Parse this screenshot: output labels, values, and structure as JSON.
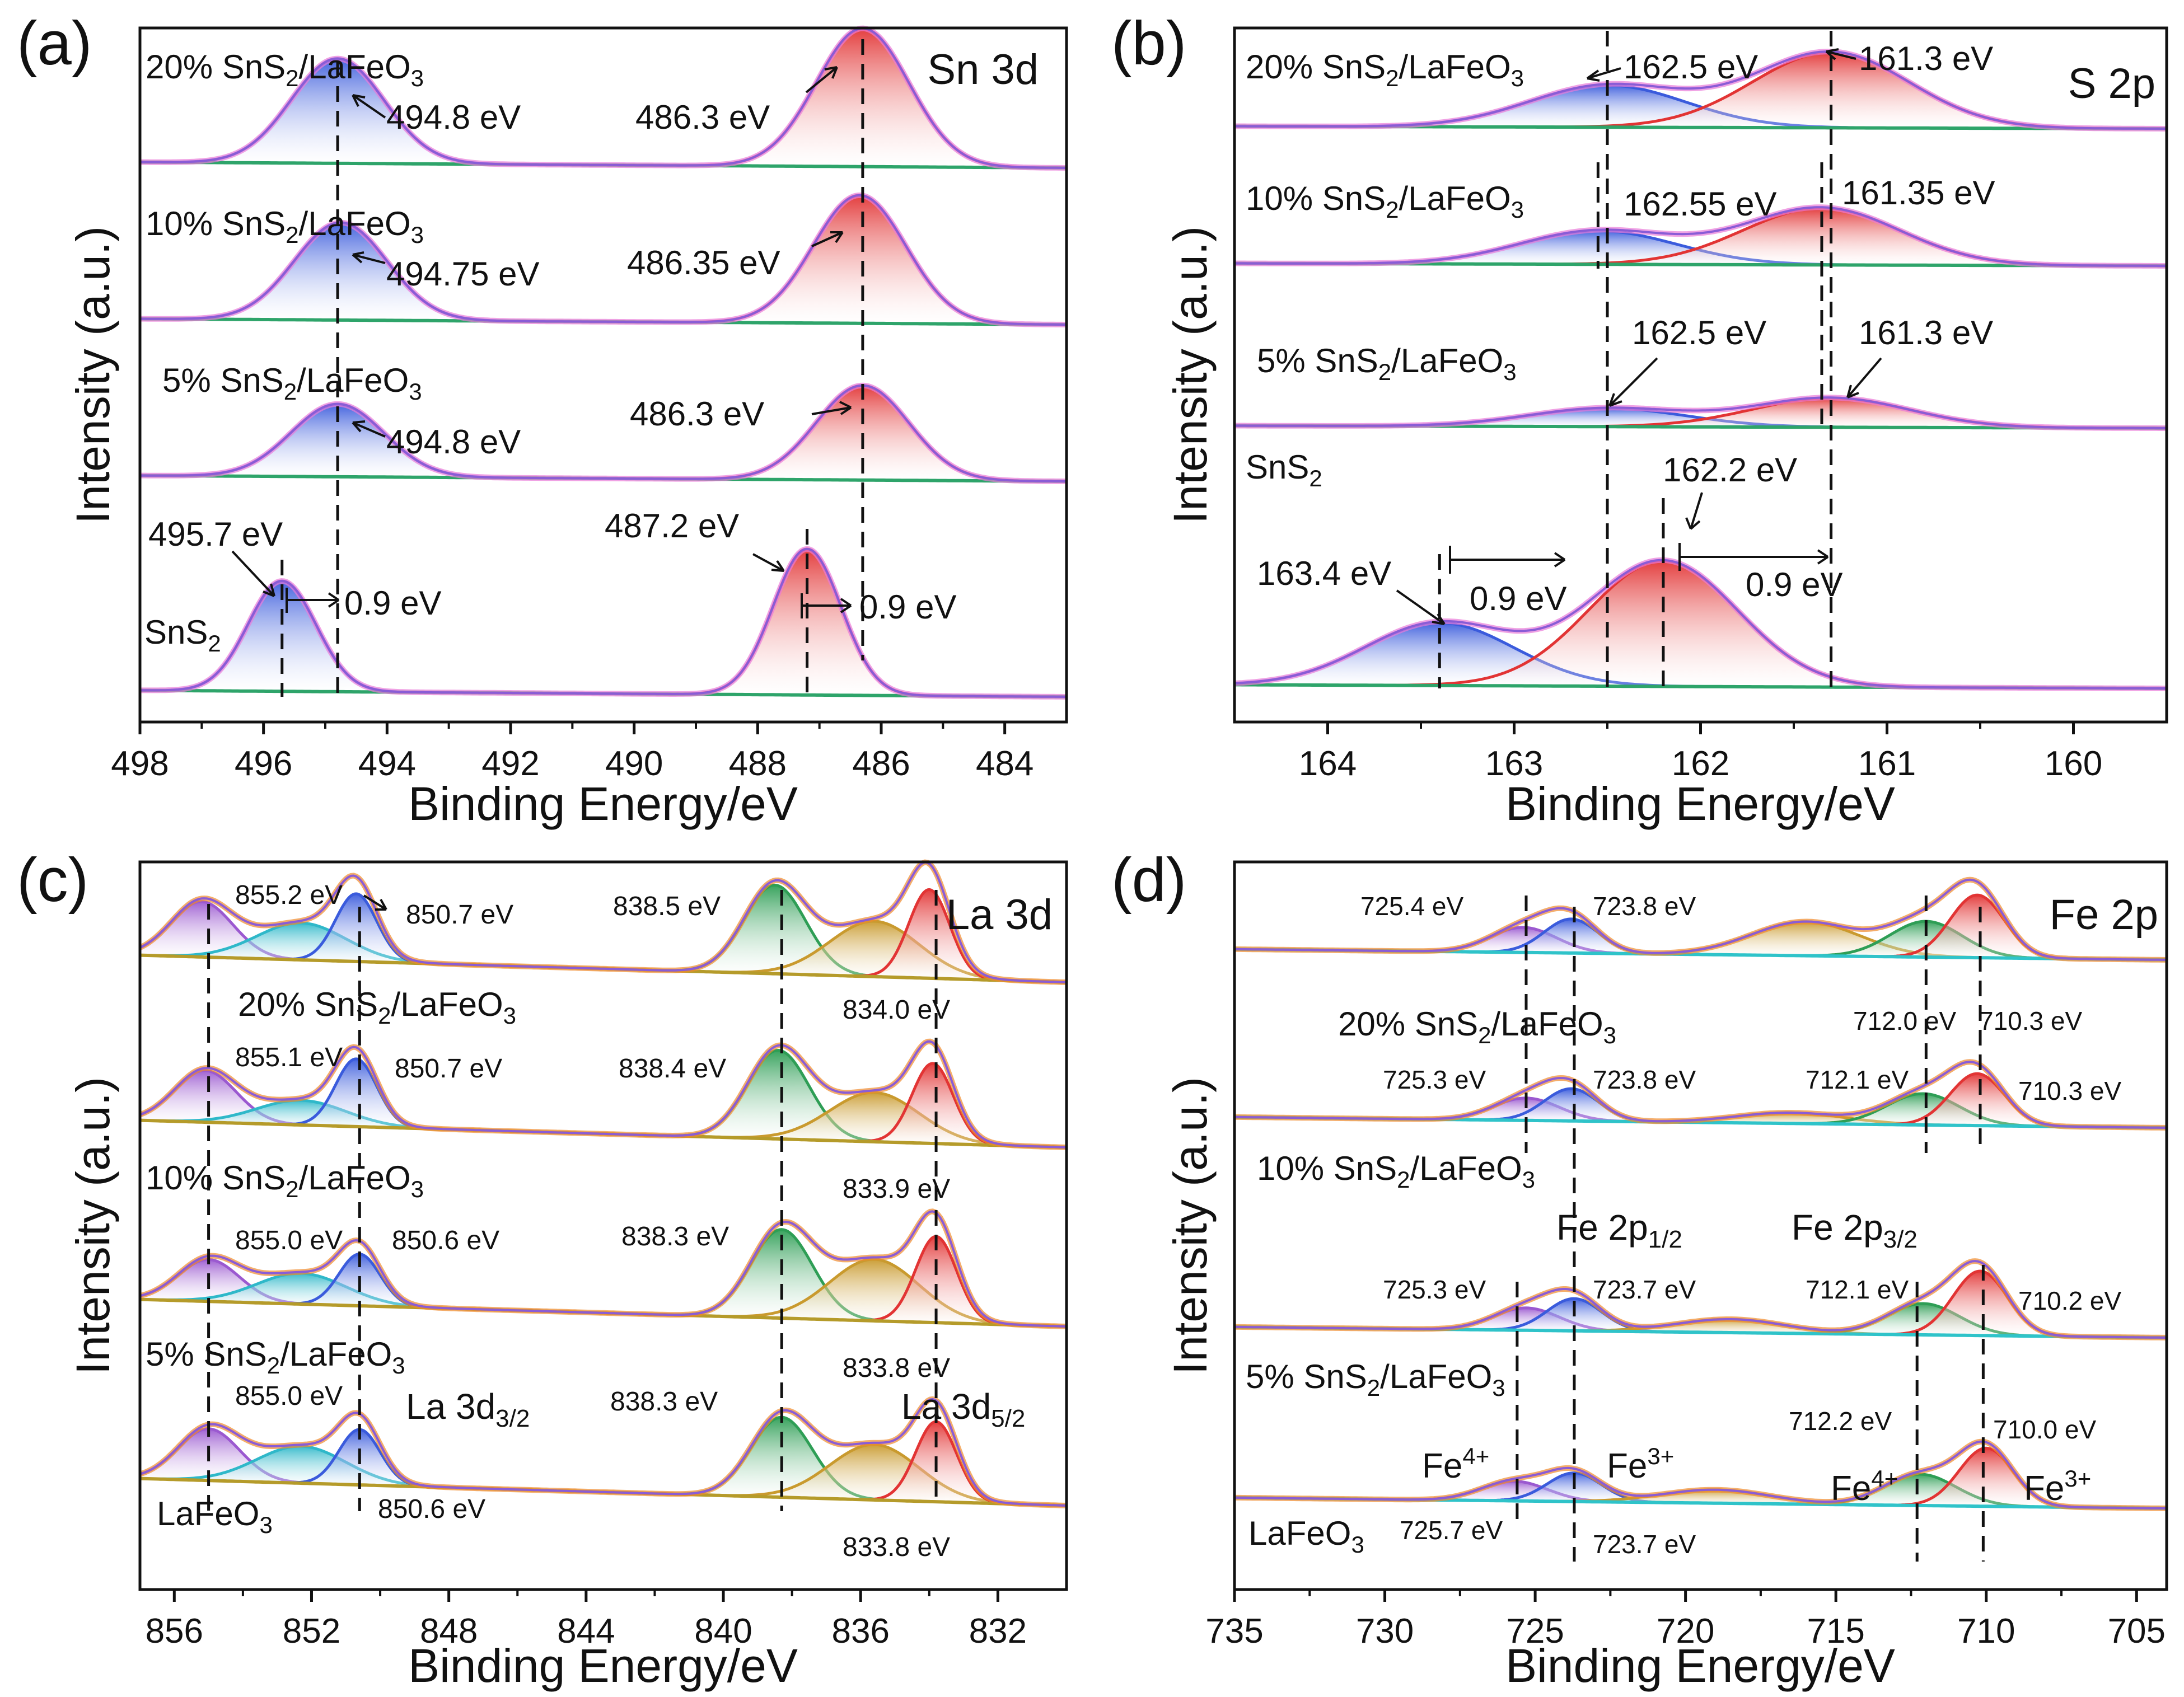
{
  "chart_data": [
    {
      "panel": "(a)",
      "type": "line",
      "title": "Sn 3d",
      "xlabel": "Binding Energy/eV",
      "ylabel": "Intensity (a.u.)",
      "xlim": [
        498,
        483
      ],
      "xticks": [
        "498",
        "496",
        "494",
        "492",
        "490",
        "488",
        "486",
        "484"
      ],
      "xtick_values": [
        498,
        496,
        494,
        492,
        490,
        488,
        486,
        484
      ],
      "series": [
        {
          "name": "20% SnS2/LaFeO3",
          "label_main": "20% SnS",
          "label_sub1": "2",
          "label_mid": "/LaFeO",
          "label_sub2": "3",
          "baseline": [
            0.04,
            0.0
          ],
          "peaks": [
            {
              "center": 494.8,
              "height": 0.72,
              "width": 0.75,
              "color": "#3a5bdc"
            },
            {
              "center": 486.3,
              "height": 0.95,
              "width": 0.75,
              "color": "#e23434"
            }
          ]
        },
        {
          "name": "10% SnS2/LaFeO3",
          "label_main": "10% SnS",
          "label_sub1": "2",
          "label_mid": "/LaFeO",
          "label_sub2": "3",
          "baseline": [
            0.04,
            0.0
          ],
          "peaks": [
            {
              "center": 494.75,
              "height": 0.67,
              "width": 0.75,
              "color": "#3a5bdc"
            },
            {
              "center": 486.35,
              "height": 0.88,
              "width": 0.75,
              "color": "#e23434"
            }
          ]
        },
        {
          "name": "5% SnS2/LaFeO3",
          "label_main": "5% SnS",
          "label_sub1": "2",
          "label_mid": "/LaFeO",
          "label_sub2": "3",
          "baseline": [
            0.04,
            0.0
          ],
          "peaks": [
            {
              "center": 494.8,
              "height": 0.5,
              "width": 0.75,
              "color": "#3a5bdc"
            },
            {
              "center": 486.3,
              "height": 0.65,
              "width": 0.75,
              "color": "#e23434"
            }
          ]
        },
        {
          "name": "SnS2",
          "label_main": "SnS",
          "label_sub1": "2",
          "label_mid": "",
          "label_sub2": "",
          "baseline": [
            0.04,
            0.0
          ],
          "peaks": [
            {
              "center": 495.7,
              "height": 0.68,
              "width": 0.55,
              "color": "#3a5bdc"
            },
            {
              "center": 487.2,
              "height": 0.9,
              "width": 0.55,
              "color": "#e23434"
            }
          ]
        }
      ],
      "vlines": [
        494.8,
        495.7,
        487.2,
        486.3
      ],
      "annotations": [
        "494.8 eV",
        "486.3 eV",
        "494.75 eV",
        "486.35 eV",
        "494.8 eV",
        "486.3 eV",
        "495.7 eV",
        "487.2 eV",
        "0.9 eV",
        "0.9 eV"
      ]
    },
    {
      "panel": "(b)",
      "type": "line",
      "title": "S 2p",
      "xlabel": "Binding Energy/eV",
      "ylabel": "Intensity (a.u.)",
      "xlim": [
        164.5,
        159.5
      ],
      "xticks": [
        "164",
        "163",
        "162",
        "161",
        "160"
      ],
      "xtick_values": [
        164,
        163,
        162,
        161,
        160
      ],
      "series": [
        {
          "name": "20% SnS2/LaFeO3",
          "label_main": "20% SnS",
          "label_sub1": "2",
          "label_mid": "/LaFeO",
          "label_sub2": "3",
          "baseline": [
            0.03,
            0.0
          ],
          "peaks": [
            {
              "center": 162.5,
              "height": 0.5,
              "width": 0.42,
              "color": "#3a5bdc"
            },
            {
              "center": 161.3,
              "height": 0.9,
              "width": 0.42,
              "color": "#e23434"
            }
          ]
        },
        {
          "name": "10% SnS2/LaFeO3",
          "label_main": "10% SnS",
          "label_sub1": "2",
          "label_mid": "/LaFeO",
          "label_sub2": "3",
          "baseline": [
            0.03,
            0.0
          ],
          "peaks": [
            {
              "center": 162.55,
              "height": 0.4,
              "width": 0.42,
              "color": "#3a5bdc"
            },
            {
              "center": 161.35,
              "height": 0.68,
              "width": 0.42,
              "color": "#e23434"
            }
          ]
        },
        {
          "name": "5% SnS2/LaFeO3",
          "label_main": "5% SnS",
          "label_sub1": "2",
          "label_mid": "/LaFeO",
          "label_sub2": "3",
          "baseline": [
            0.03,
            0.0
          ],
          "peaks": [
            {
              "center": 162.5,
              "height": 0.22,
              "width": 0.42,
              "color": "#3a5bdc"
            },
            {
              "center": 161.3,
              "height": 0.35,
              "width": 0.42,
              "color": "#e23434"
            }
          ]
        },
        {
          "name": "SnS2",
          "label_main": "SnS",
          "label_sub1": "2",
          "label_mid": "",
          "label_sub2": "",
          "baseline": [
            0.02,
            0.0
          ],
          "peaks": [
            {
              "center": 163.4,
              "height": 0.34,
              "width": 0.4,
              "color": "#3a5bdc"
            },
            {
              "center": 162.2,
              "height": 0.68,
              "width": 0.4,
              "color": "#e23434"
            }
          ]
        }
      ],
      "vlines": [
        162.5,
        161.35,
        161.3,
        162.2
      ],
      "annotations": [
        "162.5 eV",
        "161.3 eV",
        "162.55 eV",
        "161.35 eV",
        "162.5 eV",
        "161.3 eV",
        "162.2 eV",
        "163.4 eV",
        "0.9 eV",
        "0.9 eV"
      ]
    },
    {
      "panel": "(c)",
      "type": "line",
      "title": "La 3d",
      "xlabel": "Binding Energy/eV",
      "ylabel": "Intensity (a.u.)",
      "xlim": [
        857,
        830
      ],
      "xticks": [
        "856",
        "852",
        "848",
        "844",
        "840",
        "836",
        "832"
      ],
      "xtick_values": [
        856,
        852,
        848,
        844,
        840,
        836,
        832
      ],
      "series": [
        {
          "name": "20% SnS2/LaFeO3",
          "label_main": "20% SnS",
          "label_sub1": "2",
          "label_mid": "/LaFeO",
          "label_sub2": "3",
          "baseline": [
            0.22,
            0.0
          ],
          "peaks": [
            {
              "center": 855.2,
              "height": 0.45,
              "width": 0.9,
              "color": "#9b59d0"
            },
            {
              "center": 852.3,
              "height": 0.3,
              "width": 1.3,
              "color": "#2fb8c9"
            },
            {
              "center": 850.7,
              "height": 0.55,
              "width": 0.6,
              "color": "#3a5bdc"
            },
            {
              "center": 838.5,
              "height": 0.72,
              "width": 0.9,
              "color": "#2e9e55"
            },
            {
              "center": 835.6,
              "height": 0.45,
              "width": 1.3,
              "color": "#c99a2e"
            },
            {
              "center": 834.0,
              "height": 0.72,
              "width": 0.6,
              "color": "#e23434"
            }
          ]
        },
        {
          "name": "10% SnS2/LaFeO3",
          "label_main": "10% SnS",
          "label_sub1": "2",
          "label_mid": "/LaFeO",
          "label_sub2": "3",
          "baseline": [
            0.22,
            0.0
          ],
          "peaks": [
            {
              "center": 855.1,
              "height": 0.42,
              "width": 0.9,
              "color": "#9b59d0"
            },
            {
              "center": 852.3,
              "height": 0.2,
              "width": 1.3,
              "color": "#2fb8c9"
            },
            {
              "center": 850.7,
              "height": 0.55,
              "width": 0.6,
              "color": "#3a5bdc"
            },
            {
              "center": 838.4,
              "height": 0.72,
              "width": 0.9,
              "color": "#2e9e55"
            },
            {
              "center": 835.6,
              "height": 0.4,
              "width": 1.3,
              "color": "#c99a2e"
            },
            {
              "center": 833.9,
              "height": 0.65,
              "width": 0.6,
              "color": "#e23434"
            }
          ]
        },
        {
          "name": "5% SnS2/LaFeO3",
          "label_main": "5% SnS",
          "label_sub1": "2",
          "label_mid": "/LaFeO",
          "label_sub2": "3",
          "baseline": [
            0.22,
            0.0
          ],
          "peaks": [
            {
              "center": 855.0,
              "height": 0.34,
              "width": 0.9,
              "color": "#9b59d0"
            },
            {
              "center": 852.3,
              "height": 0.25,
              "width": 1.3,
              "color": "#2fb8c9"
            },
            {
              "center": 850.6,
              "height": 0.42,
              "width": 0.6,
              "color": "#3a5bdc"
            },
            {
              "center": 838.3,
              "height": 0.72,
              "width": 0.9,
              "color": "#2e9e55"
            },
            {
              "center": 835.6,
              "height": 0.5,
              "width": 1.3,
              "color": "#c99a2e"
            },
            {
              "center": 833.8,
              "height": 0.7,
              "width": 0.6,
              "color": "#e23434"
            }
          ]
        },
        {
          "name": "LaFeO3",
          "label_main": "LaFeO",
          "label_sub1": "3",
          "label_mid": "",
          "label_sub2": "",
          "baseline": [
            0.22,
            0.0
          ],
          "peaks": [
            {
              "center": 855.0,
              "height": 0.42,
              "width": 0.9,
              "color": "#9b59d0"
            },
            {
              "center": 852.3,
              "height": 0.3,
              "width": 1.3,
              "color": "#2fb8c9"
            },
            {
              "center": 850.6,
              "height": 0.45,
              "width": 0.6,
              "color": "#3a5bdc"
            },
            {
              "center": 838.3,
              "height": 0.65,
              "width": 0.9,
              "color": "#2e9e55"
            },
            {
              "center": 835.6,
              "height": 0.45,
              "width": 1.3,
              "color": "#c99a2e"
            },
            {
              "center": 833.8,
              "height": 0.65,
              "width": 0.6,
              "color": "#e23434"
            }
          ]
        }
      ],
      "vlines": [
        855.0,
        850.6,
        838.3,
        833.8
      ],
      "annotations": [
        "855.2 eV",
        "850.7 eV",
        "838.5 eV",
        "834.0 eV",
        "855.1 eV",
        "850.7 eV",
        "838.4 eV",
        "833.9 eV",
        "855.0 eV",
        "850.6 eV",
        "838.3 eV",
        "833.8 eV",
        "855.0 eV",
        "850.6 eV",
        "838.3 eV",
        "833.8 eV"
      ],
      "label_la32_main": "La 3d",
      "label_la32_sub": "3/2",
      "label_la52_main": "La 3d",
      "label_la52_sub": "5/2"
    },
    {
      "panel": "(d)",
      "type": "line",
      "title": "Fe 2p",
      "xlabel": "Binding Energy/eV",
      "ylabel": "Intensity (a.u.)",
      "xlim": [
        735,
        704
      ],
      "xticks": [
        "735",
        "730",
        "725",
        "720",
        "715",
        "710",
        "705"
      ],
      "xtick_values": [
        735,
        730,
        725,
        720,
        715,
        710,
        705
      ],
      "series": [
        {
          "name": "20% SnS2/LaFeO3",
          "label_main": "20% SnS",
          "label_sub1": "2",
          "label_mid": "/LaFeO",
          "label_sub2": "3",
          "baseline": [
            0.12,
            0.0
          ],
          "peaks": [
            {
              "center": 725.4,
              "height": 0.28,
              "width": 1.1,
              "color": "#9b59d0"
            },
            {
              "center": 723.8,
              "height": 0.38,
              "width": 0.9,
              "color": "#3a5bdc"
            },
            {
              "center": 716.0,
              "height": 0.38,
              "width": 1.8,
              "color": "#c99a2e"
            },
            {
              "center": 712.0,
              "height": 0.4,
              "width": 1.2,
              "color": "#2e9e55"
            },
            {
              "center": 710.3,
              "height": 0.7,
              "width": 0.9,
              "color": "#e23434"
            }
          ]
        },
        {
          "name": "10% SnS2/LaFeO3",
          "label_main": "10% SnS",
          "label_sub1": "2",
          "label_mid": "/LaFeO",
          "label_sub2": "3",
          "baseline": [
            0.12,
            0.0
          ],
          "peaks": [
            {
              "center": 725.3,
              "height": 0.25,
              "width": 1.1,
              "color": "#9b59d0"
            },
            {
              "center": 723.8,
              "height": 0.36,
              "width": 0.9,
              "color": "#3a5bdc"
            },
            {
              "center": 716.5,
              "height": 0.12,
              "width": 1.8,
              "color": "#c99a2e"
            },
            {
              "center": 712.1,
              "height": 0.35,
              "width": 1.2,
              "color": "#2e9e55"
            },
            {
              "center": 710.3,
              "height": 0.58,
              "width": 0.9,
              "color": "#e23434"
            }
          ]
        },
        {
          "name": "5% SnS2/LaFeO3",
          "label_main": "5% SnS",
          "label_sub1": "2",
          "label_mid": "/LaFeO",
          "label_sub2": "3",
          "baseline": [
            0.12,
            0.0
          ],
          "peaks": [
            {
              "center": 725.3,
              "height": 0.25,
              "width": 1.1,
              "color": "#9b59d0"
            },
            {
              "center": 723.7,
              "height": 0.36,
              "width": 0.9,
              "color": "#3a5bdc"
            },
            {
              "center": 718.5,
              "height": 0.15,
              "width": 1.8,
              "color": "#c99a2e"
            },
            {
              "center": 712.1,
              "height": 0.35,
              "width": 1.2,
              "color": "#2e9e55"
            },
            {
              "center": 710.2,
              "height": 0.72,
              "width": 0.9,
              "color": "#e23434"
            }
          ]
        },
        {
          "name": "LaFeO3",
          "label_main": "LaFeO",
          "label_sub1": "3",
          "label_mid": "",
          "label_sub2": "",
          "baseline": [
            0.12,
            0.0
          ],
          "peaks": [
            {
              "center": 725.7,
              "height": 0.22,
              "width": 1.1,
              "color": "#9b59d0"
            },
            {
              "center": 723.7,
              "height": 0.32,
              "width": 0.9,
              "color": "#3a5bdc"
            },
            {
              "center": 719.0,
              "height": 0.15,
              "width": 1.8,
              "color": "#c99a2e"
            },
            {
              "center": 712.2,
              "height": 0.35,
              "width": 1.2,
              "color": "#2e9e55"
            },
            {
              "center": 710.0,
              "height": 0.65,
              "width": 0.9,
              "color": "#e23434"
            }
          ]
        }
      ],
      "vlines": [
        725.4,
        723.7,
        712.1,
        710.3
      ],
      "annotations": [
        "725.4 eV",
        "723.8 eV",
        "712.0 eV",
        "710.3 eV",
        "725.3 eV",
        "723.8 eV",
        "712.1 eV",
        "710.3 eV",
        "725.3 eV",
        "723.7 eV",
        "712.1 eV",
        "710.2 eV",
        "712.2 eV",
        "710.0 eV",
        "725.7 eV",
        "723.7 eV"
      ],
      "label_fe12_main": "Fe 2p",
      "label_fe12_sub": "1/2",
      "label_fe32_main": "Fe 2p",
      "label_fe32_sub": "3/2",
      "label_fe4": "Fe",
      "label_fe4_sup": "4+",
      "label_fe3": "Fe",
      "label_fe3_sup": "3+"
    }
  ],
  "colors": {
    "envelope": "#8a5cd6",
    "raw_points_ab": "#e97ad8",
    "raw_points_cd": "#f08a2c",
    "baseline_ab": "#2ea46a",
    "baseline_cd": "#b59b2a",
    "fe_bg": "#2fc3c9"
  }
}
